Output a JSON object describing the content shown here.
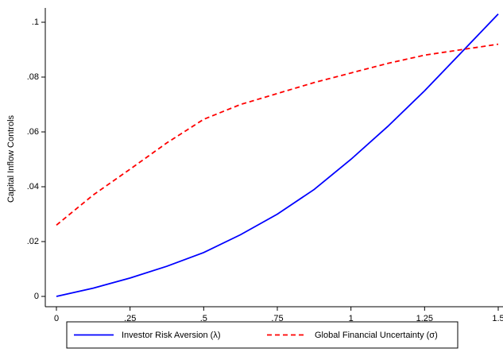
{
  "chart_data": {
    "type": "line",
    "y_label": "Capital Inflow Controls",
    "x": [
      0,
      0.125,
      0.25,
      0.375,
      0.5,
      0.625,
      0.75,
      0.875,
      1,
      1.125,
      1.25,
      1.375,
      1.5
    ],
    "series": [
      {
        "name": "Investor Risk Aversion (λ)",
        "color": "#0000ff",
        "dash": "solid",
        "values": [
          0,
          0.003,
          0.0067,
          0.011,
          0.016,
          0.0225,
          0.03,
          0.039,
          0.05,
          0.062,
          0.075,
          0.089,
          0.103
        ]
      },
      {
        "name": "Global Financial Uncertainty (σ)",
        "color": "#ff0000",
        "dash": "dashed",
        "values": [
          0.026,
          0.037,
          0.0464,
          0.056,
          0.0646,
          0.07,
          0.074,
          0.078,
          0.0815,
          0.085,
          0.088,
          0.09,
          0.092
        ]
      }
    ],
    "xlim": [
      0,
      1.5
    ],
    "ylim": [
      0,
      0.1
    ],
    "xticks": [
      0,
      {
        "value": 0.25,
        "label": ".25"
      },
      {
        "value": 0.5,
        "label": ".5"
      },
      {
        "value": 0.75,
        "label": ".75"
      },
      1,
      1.25,
      1.5
    ],
    "yticks": [
      0,
      {
        "value": 0.02,
        "label": ".02"
      },
      {
        "value": 0.04,
        "label": ".04"
      },
      {
        "value": 0.06,
        "label": ".06"
      },
      {
        "value": 0.08,
        "label": ".08"
      },
      {
        "value": 0.1,
        "label": ".1"
      }
    ],
    "legend": "bottom"
  }
}
